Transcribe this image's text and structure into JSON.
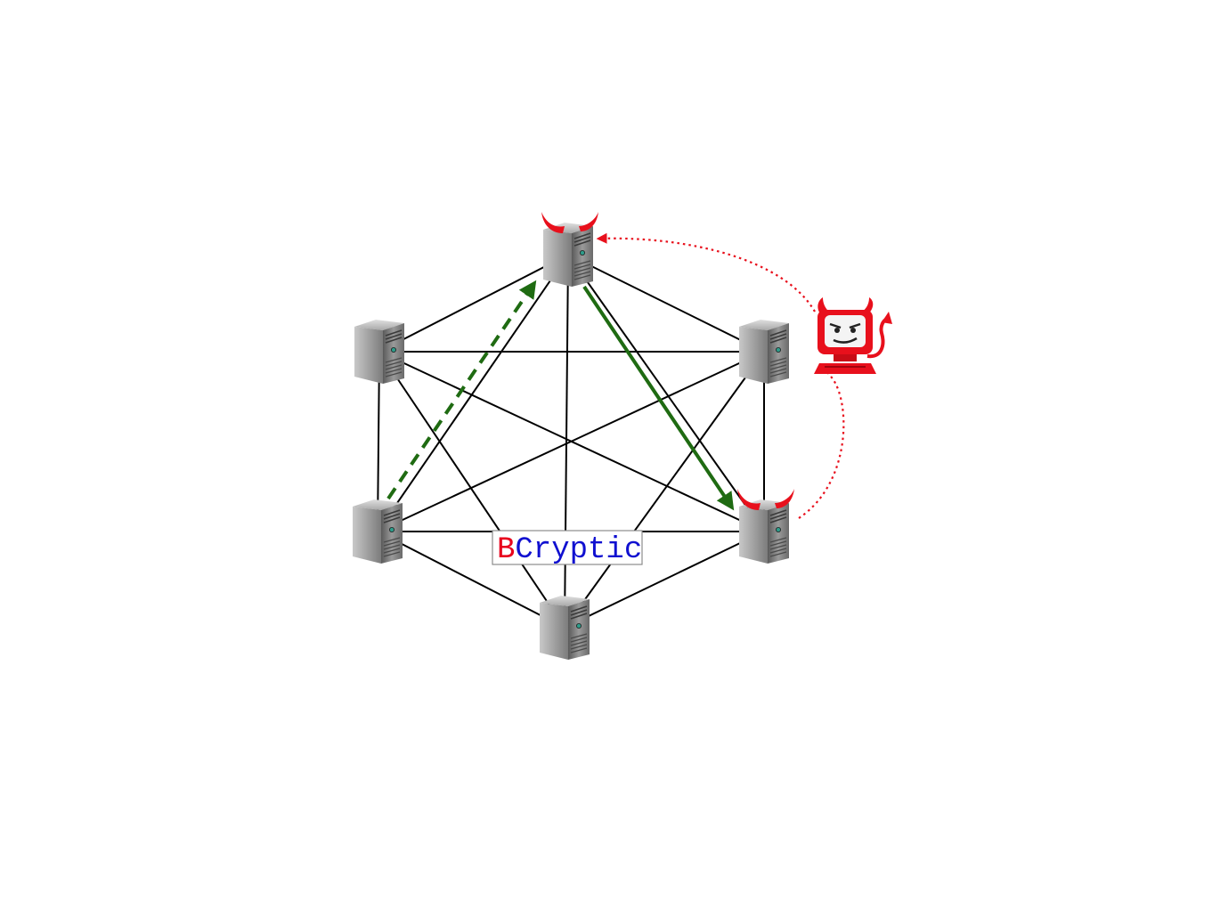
{
  "diagram": {
    "label": {
      "first_letter": "B",
      "rest": "Cryptic",
      "first_letter_color": "#e8001c",
      "rest_color": "#1010d0"
    },
    "nodes": [
      {
        "id": "top",
        "compromised": true
      },
      {
        "id": "upper-left",
        "compromised": false
      },
      {
        "id": "upper-right",
        "compromised": false
      },
      {
        "id": "lower-left",
        "compromised": false
      },
      {
        "id": "lower-right",
        "compromised": true
      },
      {
        "id": "bottom",
        "compromised": false
      }
    ],
    "edges": [
      [
        "top",
        "upper-left"
      ],
      [
        "top",
        "upper-right"
      ],
      [
        "top",
        "lower-left"
      ],
      [
        "top",
        "lower-right"
      ],
      [
        "top",
        "bottom"
      ],
      [
        "upper-left",
        "upper-right"
      ],
      [
        "upper-left",
        "lower-left"
      ],
      [
        "upper-left",
        "lower-right"
      ],
      [
        "upper-left",
        "bottom"
      ],
      [
        "upper-right",
        "lower-left"
      ],
      [
        "upper-right",
        "lower-right"
      ],
      [
        "upper-right",
        "bottom"
      ],
      [
        "lower-left",
        "lower-right"
      ],
      [
        "lower-left",
        "bottom"
      ],
      [
        "lower-right",
        "bottom"
      ]
    ],
    "arrows": [
      {
        "from": "lower-left",
        "to": "top",
        "style": "dashed",
        "color": "#1f6b12"
      },
      {
        "from": "top",
        "to": "lower-right",
        "style": "solid",
        "color": "#1f6b12"
      }
    ],
    "adversary": {
      "icon": "devil-computer-icon",
      "color": "#e8101c",
      "controls": [
        "top",
        "lower-right"
      ]
    },
    "colors": {
      "edge": "#000000",
      "server_body": "#8a8a8a",
      "horn": "#e8101c",
      "control_link": "#e8101c"
    }
  }
}
